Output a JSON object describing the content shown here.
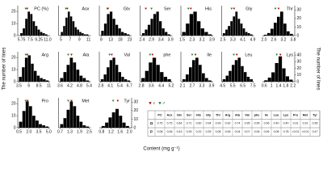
{
  "labels": {
    "x": "Content (mg g⁻¹)",
    "y": "The number of lines"
  },
  "legend": [
    {
      "name": "♀",
      "color": "#c00000"
    },
    {
      "name": "♂",
      "color": "#1e7a2e"
    }
  ],
  "chart_data": [
    {
      "type": "histogram",
      "title": "PC (%)",
      "bins": [
        5.5,
        6,
        6.5,
        7,
        7.5,
        8,
        8.5,
        9,
        9.5,
        10,
        10.5,
        11
      ],
      "values": [
        2,
        6,
        14,
        20,
        18,
        12,
        8,
        5,
        3,
        2,
        1
      ],
      "xlim": [
        5,
        11.5
      ],
      "xticks": [
        5.75,
        7.5,
        9.25,
        {
          "value": 11,
          "label": "11.0"
        }
      ],
      "ylim": [
        0,
        25
      ],
      "yticks": [
        0,
        10,
        20
      ],
      "parent_x": [
        6.9,
        6.6
      ]
    },
    {
      "type": "histogram",
      "title": "Asx",
      "bins": [
        5,
        5.5,
        6,
        6.5,
        7,
        7.5,
        8,
        8.5,
        9,
        9.5,
        10,
        10.5,
        11
      ],
      "values": [
        3,
        8,
        15,
        20,
        16,
        12,
        7,
        5,
        3,
        2,
        1,
        1
      ],
      "xlim": [
        4.5,
        11.5
      ],
      "xticks": [
        5,
        7,
        9,
        11
      ],
      "ylim": [
        0,
        25
      ],
      "parent_x": [
        6.4,
        6.1
      ]
    },
    {
      "type": "histogram",
      "title": "Glx",
      "bins": [
        8,
        9.5,
        11,
        12.5,
        14,
        15.5,
        17,
        18.5,
        20,
        21.5,
        23
      ],
      "values": [
        4,
        10,
        18,
        20,
        14,
        9,
        6,
        3,
        2,
        1
      ],
      "xlim": [
        7,
        24
      ],
      "xticks": [
        8,
        13,
        18,
        23
      ],
      "ylim": [
        0,
        25
      ],
      "parent_x": [
        11.6,
        11.2
      ]
    },
    {
      "type": "histogram",
      "title": "Ser",
      "bins": [
        2.4,
        2.55,
        2.7,
        2.85,
        3,
        3.15,
        3.3,
        3.45,
        3.6,
        3.75,
        3.9
      ],
      "values": [
        2,
        5,
        9,
        14,
        18,
        20,
        12,
        6,
        3,
        1
      ],
      "xlim": [
        2.3,
        4.0
      ],
      "xticks": [
        2.4,
        2.9,
        3.4,
        3.9
      ],
      "ylim": [
        0,
        25
      ],
      "parent_x": [
        2.6,
        2.9
      ]
    },
    {
      "type": "histogram",
      "title": "His",
      "bins": [
        1.5,
        1.8,
        2.1,
        2.4,
        2.7,
        3,
        3.3,
        3.6,
        3.9
      ],
      "values": [
        3,
        10,
        18,
        20,
        12,
        6,
        3,
        1
      ],
      "xlim": [
        1.4,
        4.0
      ],
      "xticks": [
        1.5,
        2.3,
        3.1,
        3.9
      ],
      "ylim": [
        0,
        25
      ],
      "parent_x": [
        2.2,
        2.0
      ]
    },
    {
      "type": "histogram",
      "title": "Gly",
      "bins": [
        2.5,
        2.7,
        2.9,
        3.1,
        3.3,
        3.5,
        3.7,
        3.9,
        4.1,
        4.3,
        4.5,
        4.7,
        4.9
      ],
      "values": [
        2,
        5,
        8,
        12,
        16,
        20,
        14,
        10,
        6,
        3,
        2,
        1
      ],
      "xlim": [
        2.4,
        5.0
      ],
      "xticks": [
        2.5,
        3.3,
        4.1,
        4.9
      ],
      "ylim": [
        0,
        25
      ],
      "parent_x": [
        3.4,
        3.2
      ]
    },
    {
      "type": "histogram",
      "title": "Thr",
      "bins": [
        2,
        2.2,
        2.4,
        2.6,
        2.8,
        3,
        3.2,
        3.4,
        3.6,
        3.8
      ],
      "values": [
        1,
        3,
        8,
        15,
        22,
        28,
        14,
        5,
        2
      ],
      "xlim": [
        1.9,
        3.9
      ],
      "xticks": [
        {
          "value": 2,
          "label": "2.0"
        },
        2.6,
        3.2,
        3.8
      ],
      "ylim": [
        0,
        35
      ],
      "yticks": [
        0,
        10,
        20,
        30
      ],
      "parent_x": [
        2.9,
        2.7
      ]
    },
    {
      "type": "histogram",
      "title": "Arg",
      "bins": [
        3.5,
        4.25,
        5,
        5.75,
        6.5,
        7.25,
        8,
        8.75,
        9.5,
        10.25,
        11
      ],
      "values": [
        4,
        12,
        20,
        22,
        15,
        9,
        5,
        3,
        2,
        1
      ],
      "xlim": [
        3.2,
        11.3
      ],
      "xticks": [
        3.5,
        6,
        8.5,
        11
      ],
      "ylim": [
        0,
        25
      ],
      "yticks": [
        0,
        10,
        20
      ],
      "parent_x": [
        5.6,
        5.2
      ]
    },
    {
      "type": "histogram",
      "title": "Ala",
      "bins": [
        3.6,
        3.8,
        4,
        4.2,
        4.4,
        4.6,
        4.8,
        5,
        5.2,
        5.4
      ],
      "values": [
        3,
        8,
        14,
        20,
        16,
        10,
        5,
        3,
        1
      ],
      "xlim": [
        3.5,
        5.5
      ],
      "xticks": [
        3.6,
        4.2,
        4.8,
        5.4
      ],
      "ylim": [
        0,
        25
      ],
      "parent_x": [
        4.3,
        4.1
      ]
    },
    {
      "type": "histogram",
      "title": "Val",
      "bins": [
        2.8,
        3.2,
        3.6,
        4,
        4.4,
        4.8,
        5.2,
        5.6,
        6,
        6.4,
        6.8
      ],
      "values": [
        2,
        6,
        12,
        18,
        20,
        14,
        8,
        4,
        2,
        1
      ],
      "xlim": [
        2.6,
        7.0
      ],
      "xticks": [
        2.8,
        4.1,
        5.4,
        6.7
      ],
      "ylim": [
        0,
        25
      ],
      "parent_x": [
        4.3,
        4.0
      ]
    },
    {
      "type": "histogram",
      "title": "phe",
      "bins": [
        2.8,
        3.1,
        3.4,
        3.7,
        4,
        4.3,
        4.6,
        4.9,
        5.2
      ],
      "values": [
        3,
        9,
        16,
        20,
        14,
        8,
        4,
        2
      ],
      "xlim": [
        2.7,
        5.3
      ],
      "xticks": [
        2.8,
        3.6,
        4.4,
        5.2
      ],
      "ylim": [
        0,
        25
      ],
      "parent_x": [
        3.7,
        3.5
      ]
    },
    {
      "type": "histogram",
      "title": "Ile",
      "bins": [
        2.1,
        2.3,
        2.5,
        2.7,
        2.9,
        3.1,
        3.3,
        3.5,
        3.7,
        3.9
      ],
      "values": [
        2,
        6,
        12,
        18,
        20,
        14,
        7,
        3,
        1
      ],
      "xlim": [
        2.0,
        4.0
      ],
      "xticks": [
        2.1,
        2.7,
        3.3,
        3.9
      ],
      "ylim": [
        0,
        25
      ],
      "parent_x": [
        2.9,
        2.7
      ]
    },
    {
      "type": "histogram",
      "title": "Leu",
      "bins": [
        4.5,
        4.8,
        5.1,
        5.4,
        5.7,
        6,
        6.3,
        6.6,
        6.9,
        7.2,
        7.5
      ],
      "values": [
        2,
        5,
        9,
        14,
        18,
        20,
        13,
        8,
        4,
        2
      ],
      "xlim": [
        4.4,
        7.6
      ],
      "xticks": [
        4.5,
        5.5,
        6.5,
        7.5
      ],
      "ylim": [
        0,
        25
      ],
      "parent_x": [
        5.9,
        5.6
      ]
    },
    {
      "type": "histogram",
      "title": "Lys",
      "bins": [
        0.6,
        0.8,
        1,
        1.2,
        1.4,
        1.6,
        1.8,
        2,
        2.2
      ],
      "values": [
        2,
        6,
        14,
        28,
        38,
        20,
        8,
        3
      ],
      "xlim": [
        0.5,
        2.3
      ],
      "xticks": [
        0.6,
        1,
        1.4,
        1.8,
        2.2
      ],
      "ylim": [
        0,
        45
      ],
      "yticks": [
        0,
        10,
        20,
        30,
        40
      ],
      "parent_x": [
        1.5,
        1.3
      ]
    },
    {
      "type": "histogram",
      "title": "Pro",
      "bins": [
        0.5,
        1,
        1.5,
        2,
        2.5,
        3,
        3.5,
        4,
        4.5,
        5
      ],
      "values": [
        5,
        14,
        22,
        18,
        10,
        6,
        3,
        2,
        1
      ],
      "xlim": [
        0.3,
        5.2
      ],
      "xticks": [
        0.5,
        {
          "value": 2,
          "label": "2.0"
        },
        3.5,
        {
          "value": 5,
          "label": "5.0"
        }
      ],
      "ylim": [
        0,
        25
      ],
      "yticks": [
        0,
        10,
        20
      ],
      "parent_x": [
        1.8,
        1.5
      ]
    },
    {
      "type": "histogram",
      "title": "Met",
      "bins": [
        0.7,
        0.9,
        1.1,
        1.3,
        1.5,
        1.7,
        1.9,
        2.1,
        2.3,
        2.5
      ],
      "values": [
        3,
        8,
        15,
        22,
        18,
        10,
        5,
        2,
        1
      ],
      "xlim": [
        0.6,
        2.6
      ],
      "xticks": [
        0.7,
        1.3,
        1.9,
        2.5
      ],
      "ylim": [
        0,
        25
      ],
      "parent_x": [
        1.4,
        1.2
      ]
    },
    {
      "type": "histogram",
      "title": "Tyr",
      "bins": [
        0.8,
        0.95,
        1.1,
        1.25,
        1.4,
        1.55,
        1.7,
        1.85,
        2
      ],
      "values": [
        2,
        6,
        12,
        18,
        22,
        14,
        6,
        2
      ],
      "xlim": [
        0.7,
        2.1
      ],
      "xticks": [
        0.8,
        1.2,
        1.6,
        {
          "value": 2,
          "label": "2.0"
        }
      ],
      "ylim": [
        0,
        35
      ],
      "yticks": [
        0,
        10,
        20,
        30
      ],
      "parent_x": [
        1.5,
        1.3
      ]
    }
  ],
  "table": {
    "columns": [
      "PC",
      "Asx",
      "Glx",
      "Ser",
      "His",
      "Gly",
      "Thr",
      "Arg",
      "Ala",
      "Val",
      "phe",
      "Ile",
      "Leu",
      "Lys",
      "Pro",
      "Met",
      "Tyr"
    ],
    "rows": [
      {
        "label": "Ω",
        "cells": [
          "0.75",
          "0.75",
          "0.64",
          "0.71",
          "0.60",
          "0.94",
          "0.93",
          "0.92",
          "0.74",
          "0.95",
          "0.95",
          "0.96",
          "0.40",
          "0.40",
          "0.31",
          "0.31",
          "0.35"
        ]
      },
      {
        "label": "P",
        "cells": [
          "0.08",
          "0.06",
          "0.43",
          "0.39",
          "0.22",
          "0.25",
          "0.08",
          "0.06",
          "0.04",
          "0.07",
          "0.06",
          "0.06",
          "0.08",
          "0.78",
          "<0.01",
          "<0.01",
          "0.47"
        ]
      }
    ]
  }
}
